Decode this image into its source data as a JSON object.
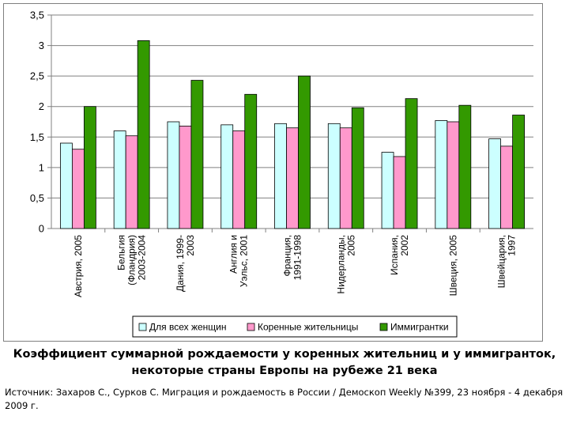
{
  "chart_data": {
    "type": "bar",
    "categories": [
      [
        "Австрия, 2005"
      ],
      [
        "Бельгия",
        "(Фландрия)",
        "2003-2004"
      ],
      [
        "Дания, 1999-",
        "2003"
      ],
      [
        "Англия и",
        "Уэльс, 2001"
      ],
      [
        "Франция,",
        "1991-1998"
      ],
      [
        "Нидерланды,",
        "2005"
      ],
      [
        "Испания,",
        "2002"
      ],
      [
        "Швеция, 2005"
      ],
      [
        "Швейцария,",
        "1997"
      ]
    ],
    "series": [
      {
        "name": "Для всех женщин",
        "color": "#ccffff",
        "values": [
          1.4,
          1.6,
          1.75,
          1.7,
          1.72,
          1.72,
          1.25,
          1.77,
          1.47
        ]
      },
      {
        "name": "Коренные жительницы",
        "color": "#ff99cc",
        "values": [
          1.3,
          1.52,
          1.68,
          1.6,
          1.65,
          1.65,
          1.18,
          1.75,
          1.35
        ]
      },
      {
        "name": "Иммигрантки",
        "color": "#339900",
        "values": [
          2.0,
          3.08,
          2.43,
          2.2,
          2.5,
          1.98,
          2.13,
          2.02,
          1.86
        ]
      }
    ],
    "ylim": [
      0,
      3.5
    ],
    "yticks": [
      "0",
      "0,5",
      "1",
      "1,5",
      "2",
      "2,5",
      "3",
      "3,5"
    ],
    "grid": true,
    "legend_position": "bottom"
  },
  "caption": {
    "line1": "Коэффициент суммарной рождаемости у коренных жительниц и у иммигранток,",
    "line2": "некоторые страны Европы на рубеже 21 века"
  },
  "source": "Источник: Захаров С., Сурков С. Миграция и рождаемость в России / Демоскоп Weekly №399, 23 ноября - 4 декабря 2009 г."
}
